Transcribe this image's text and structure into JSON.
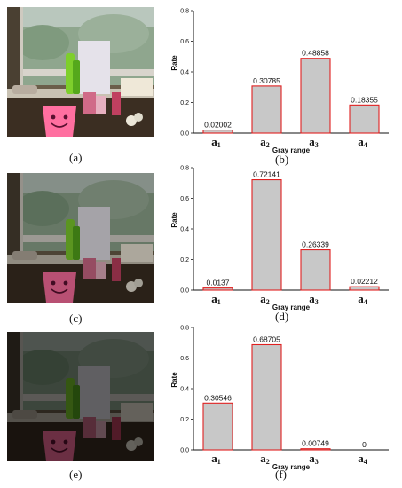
{
  "captions": {
    "a": "(a)",
    "b": "(b)",
    "c": "(c)",
    "d": "(d)",
    "e": "(e)",
    "f": "(f)"
  },
  "photos": [
    {
      "name": "photo-normal-exposure",
      "brightness": 1.0
    },
    {
      "name": "photo-medium-exposure",
      "brightness": 0.72
    },
    {
      "name": "photo-low-exposure",
      "brightness": 0.42
    }
  ],
  "colors": {
    "bar_fill": "#c8c8c8",
    "bar_stroke": "#e02020",
    "axis": "#111111"
  },
  "chart_data": [
    {
      "type": "bar",
      "categories": [
        "a1",
        "a2",
        "a3",
        "a4"
      ],
      "category_main": "a",
      "category_sub": [
        "1",
        "2",
        "3",
        "4"
      ],
      "values": [
        0.02002,
        0.30785,
        0.48858,
        0.18355
      ],
      "labels": [
        "0.02002",
        "0.30785",
        "0.48858",
        "0.18355"
      ],
      "xlabel": "Gray range",
      "ylabel": "Rate",
      "ylim": [
        0,
        0.8
      ],
      "yticks": [
        "0.0",
        "0.2",
        "0.4",
        "0.6",
        "0.8"
      ],
      "grid": false
    },
    {
      "type": "bar",
      "categories": [
        "a1",
        "a2",
        "a3",
        "a4"
      ],
      "category_main": "a",
      "category_sub": [
        "1",
        "2",
        "3",
        "4"
      ],
      "values": [
        0.0137,
        0.72141,
        0.26339,
        0.02212
      ],
      "labels": [
        "0.0137",
        "0.72141",
        "0.26339",
        "0.02212"
      ],
      "xlabel": "Gray range",
      "ylabel": "Rate",
      "ylim": [
        0,
        0.8
      ],
      "yticks": [
        "0.0",
        "0.2",
        "0.4",
        "0.6",
        "0.8"
      ],
      "grid": false
    },
    {
      "type": "bar",
      "categories": [
        "a1",
        "a2",
        "a3",
        "a4"
      ],
      "category_main": "a",
      "category_sub": [
        "1",
        "2",
        "3",
        "4"
      ],
      "values": [
        0.30546,
        0.68705,
        0.00749,
        0
      ],
      "labels": [
        "0.30546",
        "0.68705",
        "0.00749",
        "0"
      ],
      "xlabel": "Gray range",
      "ylabel": "Rate",
      "ylim": [
        0,
        0.8
      ],
      "yticks": [
        "0.0",
        "0.2",
        "0.4",
        "0.6",
        "0.8"
      ],
      "grid": false
    }
  ]
}
